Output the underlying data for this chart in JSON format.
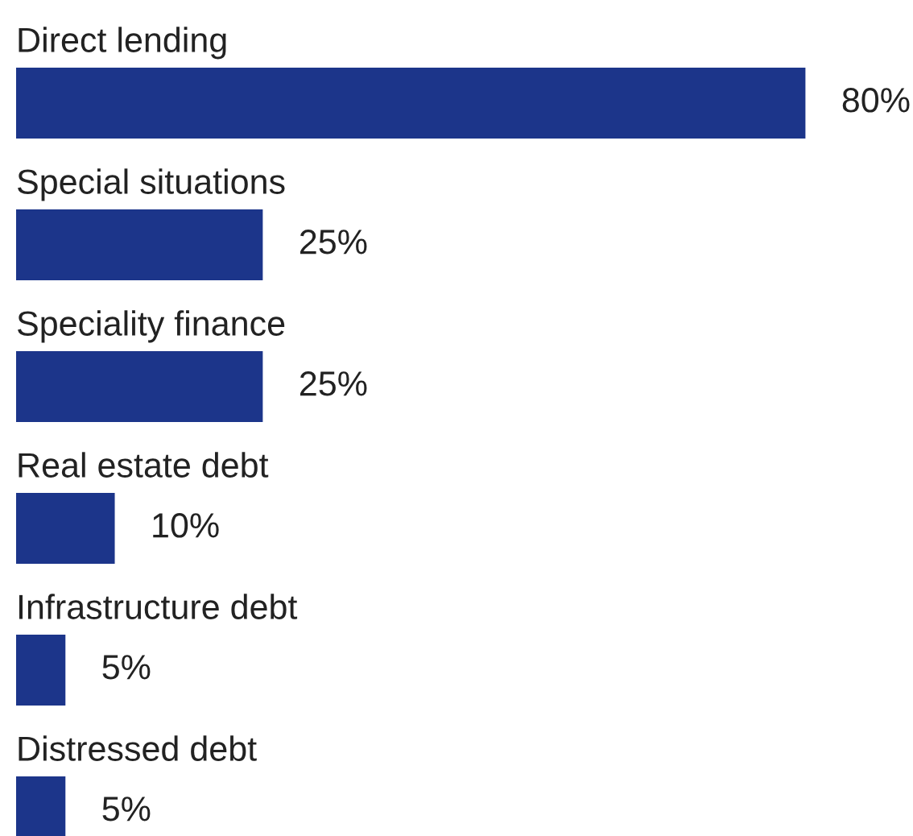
{
  "chart_data": {
    "type": "bar",
    "orientation": "horizontal",
    "categories": [
      "Direct lending",
      "Special situations",
      "Speciality finance",
      "Real estate debt",
      "Infrastructure debt",
      "Distressed debt"
    ],
    "values": [
      80,
      25,
      25,
      10,
      5,
      5
    ],
    "value_labels": [
      "80%",
      "25%",
      "25%",
      "10%",
      "5%",
      "5%"
    ],
    "color": "#1c358a"
  }
}
